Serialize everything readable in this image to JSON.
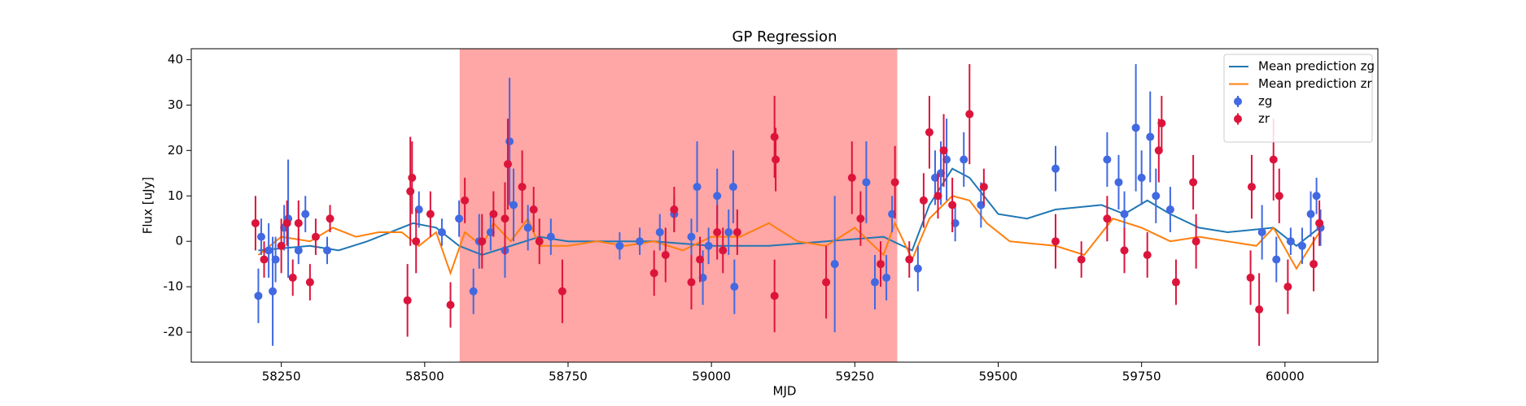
{
  "chart_data": {
    "type": "errorbar",
    "title": "GP Regression",
    "xlabel": "MJD",
    "ylabel": "Flux [uJy]",
    "xlim": [
      58093,
      60162
    ],
    "ylim": [
      -26.6,
      42.4
    ],
    "xticks": [
      58250,
      58500,
      58750,
      59000,
      59250,
      59500,
      59750,
      60000
    ],
    "yticks": [
      -20,
      -10,
      0,
      10,
      20,
      30,
      40
    ],
    "legend": "upper right",
    "span": {
      "xmin": 58561,
      "xmax": 59324,
      "color": "#ff0000",
      "alpha": 0.35
    },
    "series": [
      {
        "name": "Mean prediction zg",
        "type": "line",
        "color": "#1f77b4",
        "x": [
          58210,
          58300,
          58350,
          58400,
          58480,
          58520,
          58560,
          58600,
          58650,
          58700,
          58750,
          58800,
          58900,
          59000,
          59100,
          59200,
          59300,
          59350,
          59380,
          59420,
          59450,
          59500,
          59550,
          59600,
          59680,
          59720,
          59760,
          59800,
          59850,
          59900,
          59980,
          60020,
          60060
        ],
        "values": [
          -2,
          -1,
          -2,
          0,
          4,
          3,
          -1,
          -3,
          -1,
          1,
          0,
          0,
          0,
          -1,
          -1,
          0,
          1,
          -2,
          8,
          16,
          14,
          6,
          5,
          7,
          8,
          6,
          9,
          6,
          3,
          2,
          3,
          -1,
          3
        ]
      },
      {
        "name": "Mean prediction zr",
        "type": "line",
        "color": "#ff7f0e",
        "x": [
          58210,
          58250,
          58300,
          58340,
          58380,
          58420,
          58460,
          58490,
          58520,
          58545,
          58570,
          58600,
          58620,
          58650,
          58680,
          58700,
          58750,
          58800,
          58850,
          58900,
          58950,
          59000,
          59050,
          59100,
          59150,
          59200,
          59250,
          59300,
          59320,
          59350,
          59380,
          59420,
          59450,
          59480,
          59520,
          59600,
          59650,
          59700,
          59750,
          59800,
          59850,
          59900,
          59950,
          59980,
          60020,
          60060
        ],
        "values": [
          -3,
          1,
          0,
          3,
          1,
          2,
          2,
          -1,
          2,
          -7,
          2,
          -1,
          4,
          0,
          5,
          -1,
          -1,
          0,
          -1,
          0,
          -2,
          1,
          1,
          4,
          0,
          -1,
          3,
          -3,
          4,
          -4,
          5,
          10,
          9,
          4,
          0,
          -1,
          -3,
          5,
          3,
          0,
          1,
          0,
          -1,
          3,
          -6,
          2
        ]
      },
      {
        "name": "zg",
        "type": "errorbar",
        "color": "#4169e1",
        "x": [
          58210,
          58215,
          58228,
          58235,
          58240,
          58255,
          58262,
          58280,
          58292,
          58330,
          58490,
          58530,
          58560,
          58585,
          58595,
          58615,
          58640,
          58648,
          58655,
          58680,
          58720,
          58840,
          58875,
          58910,
          58935,
          58965,
          58975,
          58985,
          58995,
          59010,
          59030,
          59038,
          59040,
          59215,
          59270,
          59285,
          59305,
          59315,
          59360,
          59390,
          59400,
          59410,
          59425,
          59440,
          59470,
          59600,
          59690,
          59710,
          59720,
          59740,
          59750,
          59765,
          59775,
          59800,
          59960,
          59985,
          60010,
          60030,
          60045,
          60055,
          60062
        ],
        "values": [
          -12,
          1,
          -2,
          -11,
          -4,
          3,
          5,
          -2,
          6,
          -2,
          7,
          2,
          5,
          -11,
          0,
          2,
          -2,
          22,
          8,
          3,
          1,
          -1,
          0,
          2,
          6,
          1,
          12,
          -8,
          -1,
          10,
          2,
          12,
          -10,
          -5,
          13,
          -9,
          -8,
          6,
          -6,
          14,
          15,
          18,
          4,
          18,
          8,
          16,
          18,
          13,
          6,
          25,
          14,
          23,
          10,
          7,
          2,
          -4,
          0,
          -1,
          6,
          10,
          3
        ],
        "errors": [
          6,
          4,
          6,
          12,
          5,
          5,
          13,
          3,
          4,
          3,
          4,
          3,
          4,
          5,
          6,
          4,
          6,
          14,
          8,
          5,
          4,
          3,
          3,
          4,
          4,
          4,
          10,
          6,
          4,
          6,
          5,
          8,
          6,
          15,
          9,
          6,
          5,
          4,
          5,
          6,
          7,
          9,
          4,
          6,
          5,
          5,
          6,
          6,
          5,
          14,
          6,
          10,
          6,
          5,
          6,
          5,
          3,
          4,
          5,
          4,
          4
        ]
      },
      {
        "name": "zr",
        "type": "errorbar",
        "color": "#dc143c",
        "x": [
          58205,
          58220,
          58250,
          58260,
          58270,
          58280,
          58300,
          58310,
          58335,
          58470,
          58475,
          58478,
          58485,
          58510,
          58545,
          58570,
          58600,
          58620,
          58640,
          58645,
          58670,
          58690,
          58700,
          58740,
          58900,
          58920,
          58935,
          58965,
          58980,
          59010,
          59020,
          59045,
          59110,
          59110,
          59112,
          59200,
          59245,
          59260,
          59295,
          59320,
          59345,
          59370,
          59380,
          59395,
          59405,
          59420,
          59450,
          59475,
          59600,
          59645,
          59690,
          59720,
          59760,
          59780,
          59785,
          59810,
          59840,
          59845,
          59940,
          59942,
          59955,
          59980,
          59990,
          60005,
          60050,
          60060
        ],
        "values": [
          4,
          -4,
          -1,
          4,
          -8,
          4,
          -9,
          1,
          5,
          -13,
          11,
          14,
          0,
          6,
          -14,
          9,
          0,
          6,
          5,
          17,
          12,
          7,
          0,
          -11,
          -7,
          -3,
          7,
          -9,
          -4,
          2,
          -2,
          2,
          23,
          -12,
          18,
          -9,
          14,
          5,
          -5,
          13,
          -4,
          9,
          24,
          10,
          20,
          8,
          28,
          12,
          0,
          -4,
          5,
          -2,
          -3,
          20,
          26,
          -9,
          13,
          0,
          -8,
          12,
          -15,
          18,
          10,
          -10,
          -5,
          4
        ],
        "errors": [
          6,
          4,
          6,
          5,
          4,
          5,
          4,
          4,
          3,
          8,
          12,
          8,
          7,
          5,
          5,
          5,
          6,
          5,
          8,
          10,
          8,
          5,
          5,
          7,
          5,
          6,
          5,
          6,
          5,
          6,
          5,
          5,
          9,
          8,
          7,
          8,
          8,
          6,
          5,
          8,
          4,
          6,
          8,
          5,
          8,
          6,
          11,
          4,
          6,
          4,
          5,
          5,
          5,
          7,
          6,
          5,
          6,
          6,
          6,
          7,
          8,
          9,
          6,
          6,
          6,
          5
        ]
      }
    ]
  }
}
